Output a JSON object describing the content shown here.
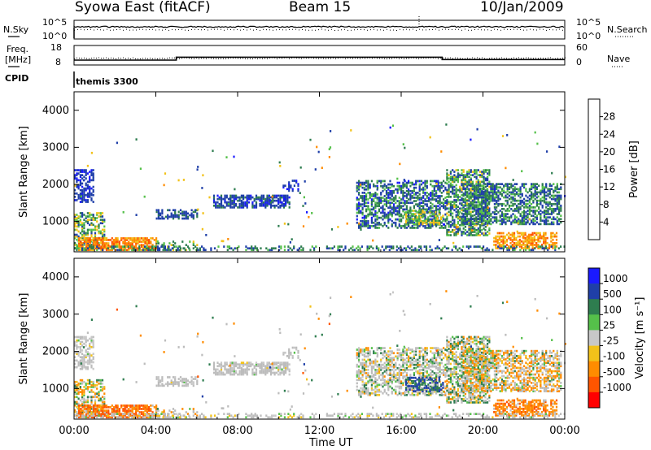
{
  "header": {
    "station": "Syowa East (fitACF)",
    "beam": "Beam 15",
    "date": "10/Jan/2009"
  },
  "status_panel": {
    "nsky_label": "N.Sky",
    "nsearch_label": "N.Search",
    "freq_label_1": "Freq.",
    "freq_label_2": "[MHz]",
    "nave_label": "Nave",
    "cpid_label": "CPID",
    "noise_tick_top": "10^5",
    "noise_tick_bottom": "10^0",
    "freq_tick_top": "18",
    "freq_tick_bottom": "8",
    "nave_tick_top": "60",
    "nave_tick_bottom": "0",
    "cpid_value": "themis 3300"
  },
  "colors": {
    "power_scale": [
      "#1a1aff",
      "#1f3fa8",
      "#2e7d4f",
      "#55c04a",
      "#f2c21a",
      "#ff8c00",
      "#ff5500",
      "#ff0000"
    ],
    "velocity_scale": [
      "#1a1aff",
      "#1f3fa8",
      "#2e7d4f",
      "#55c04a",
      "#c8c8c8",
      "#f2c21a",
      "#ff8c00",
      "#ff5500",
      "#ff0000"
    ],
    "ground_scatter": "#bcbcbc"
  },
  "chart_data": [
    {
      "type": "heatmap",
      "name": "power",
      "ylabel": "Slant Range [km]",
      "xlabel": "",
      "xlim": [
        "00:00",
        "00:00"
      ],
      "ylim": [
        180,
        4500
      ],
      "x_ticks": [
        "00:00",
        "04:00",
        "08:00",
        "12:00",
        "16:00",
        "20:00",
        "00:00"
      ],
      "y_ticks": [
        1000,
        2000,
        3000,
        4000
      ],
      "colorbar": {
        "label": "Power [dB]",
        "ticks": [
          "4",
          "8",
          "12",
          "16",
          "20",
          "24",
          "28"
        ],
        "range": [
          0,
          30
        ]
      }
    },
    {
      "type": "heatmap",
      "name": "velocity",
      "ylabel": "Slant Range [km]",
      "xlabel": "Time UT",
      "xlim": [
        "00:00",
        "00:00"
      ],
      "ylim": [
        180,
        4500
      ],
      "x_ticks": [
        "00:00",
        "04:00",
        "08:00",
        "12:00",
        "16:00",
        "20:00",
        "00:00"
      ],
      "y_ticks": [
        1000,
        2000,
        3000,
        4000
      ],
      "colorbar": {
        "label": "Velocity [m s⁻¹]",
        "ticks": [
          "1000",
          "500",
          "100",
          "25",
          "-25",
          "-100",
          "-500",
          "-1000"
        ]
      }
    },
    {
      "type": "line",
      "name": "frequency",
      "x": [
        0,
        5,
        5,
        18,
        18,
        24
      ],
      "y": [
        10.5,
        10.5,
        12.0,
        12.0,
        10.8,
        10.8
      ],
      "ylim": [
        8,
        18
      ]
    }
  ],
  "echo_regions": [
    {
      "t0": 0.0,
      "t1": 0.9,
      "r0": 1500,
      "r1": 2400,
      "density": 0.55,
      "pmin": 2,
      "pmax": 8,
      "vmin": -30,
      "vmax": 30,
      "gs": 0.6
    },
    {
      "t0": 0.0,
      "t1": 1.5,
      "r0": 250,
      "r1": 1200,
      "density": 0.5,
      "pmin": 6,
      "pmax": 20,
      "vmin": -300,
      "vmax": 200,
      "gs": 0.2
    },
    {
      "t0": 0.2,
      "t1": 4.0,
      "r0": 200,
      "r1": 560,
      "density": 0.75,
      "pmin": 18,
      "pmax": 27,
      "vmin": -900,
      "vmax": -150,
      "gs": 0.05
    },
    {
      "t0": 4.0,
      "t1": 6.0,
      "r0": 200,
      "r1": 450,
      "density": 0.25,
      "pmin": 8,
      "pmax": 18,
      "vmin": -200,
      "vmax": 50,
      "gs": 0.3
    },
    {
      "t0": 4.0,
      "t1": 6.0,
      "r0": 1050,
      "r1": 1300,
      "density": 0.55,
      "pmin": 4,
      "pmax": 10,
      "vmin": -30,
      "vmax": 30,
      "gs": 0.7
    },
    {
      "t0": 6.8,
      "t1": 10.5,
      "r0": 1350,
      "r1": 1700,
      "density": 0.7,
      "pmin": 3,
      "pmax": 9,
      "vmin": -30,
      "vmax": 30,
      "gs": 0.8
    },
    {
      "t0": 10.2,
      "t1": 11.0,
      "r0": 1800,
      "r1": 2100,
      "density": 0.35,
      "pmin": 3,
      "pmax": 8,
      "vmin": -30,
      "vmax": 30,
      "gs": 0.6
    },
    {
      "t0": 13.8,
      "t1": 18.2,
      "r0": 800,
      "r1": 2100,
      "density": 0.55,
      "pmin": 3,
      "pmax": 14,
      "vmin": -150,
      "vmax": 200,
      "gs": 0.55
    },
    {
      "t0": 16.2,
      "t1": 18.0,
      "r0": 900,
      "r1": 1300,
      "density": 0.5,
      "pmin": 10,
      "pmax": 20,
      "vmin": 200,
      "vmax": 1000,
      "gs": 0.1
    },
    {
      "t0": 18.2,
      "t1": 20.3,
      "r0": 600,
      "r1": 2400,
      "density": 0.6,
      "pmin": 4,
      "pmax": 18,
      "vmin": -200,
      "vmax": 300,
      "gs": 0.3
    },
    {
      "t0": 19.0,
      "t1": 23.8,
      "r0": 900,
      "r1": 2000,
      "density": 0.55,
      "pmin": 4,
      "pmax": 14,
      "vmin": -400,
      "vmax": 150,
      "gs": 0.35
    },
    {
      "t0": 20.5,
      "t1": 23.6,
      "r0": 250,
      "r1": 700,
      "density": 0.65,
      "pmin": 16,
      "pmax": 26,
      "vmin": -700,
      "vmax": -100,
      "gs": 0.05
    },
    {
      "t0": 0.0,
      "t1": 24.0,
      "r0": 200,
      "r1": 300,
      "density": 0.35,
      "pmin": 4,
      "pmax": 14,
      "vmin": -60,
      "vmax": 60,
      "gs": 0.6
    }
  ]
}
